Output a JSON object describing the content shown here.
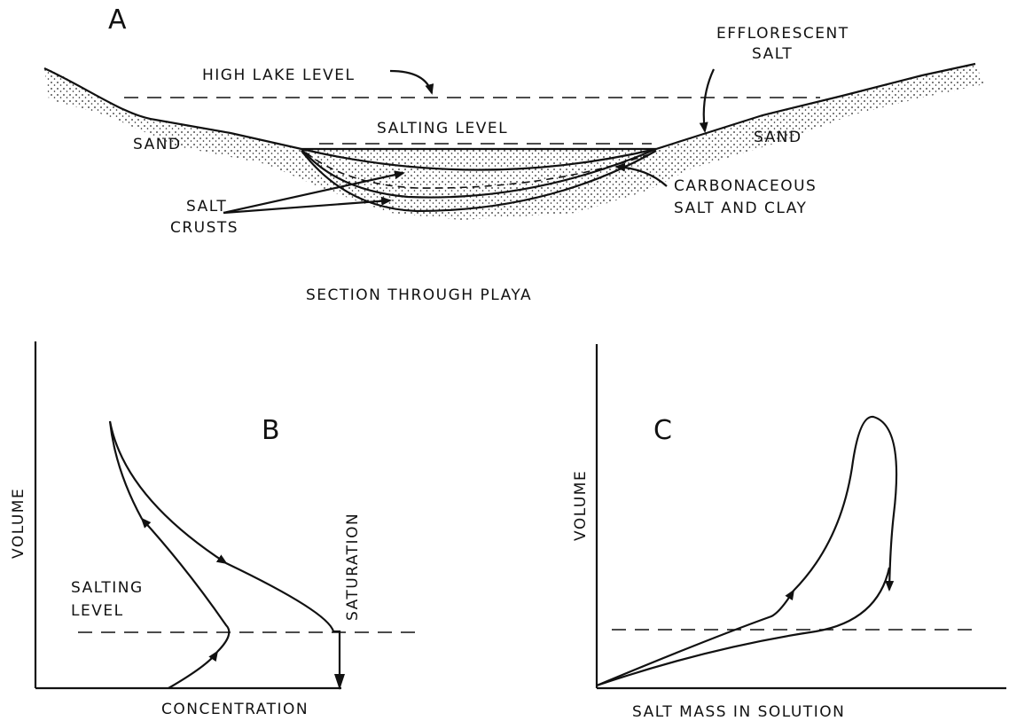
{
  "panel_a": {
    "label": "A",
    "high_lake_level": "HIGH LAKE LEVEL",
    "efflorescent_salt": [
      "EFFLORESCENT",
      "SALT"
    ],
    "salting_level": "SALTING LEVEL",
    "sand_left": "SAND",
    "sand_right": "SAND",
    "salt_crusts": [
      "SALT",
      "CRUSTS"
    ],
    "carbonaceous": [
      "CARBONACEOUS",
      "SALT AND CLAY"
    ],
    "caption": "SECTION THROUGH PLAYA"
  },
  "panel_b": {
    "label": "B",
    "y_axis": "VOLUME",
    "salting_level": [
      "SALTING",
      "LEVEL"
    ],
    "saturation": "SATURATION",
    "x_axis": "CONCENTRATION"
  },
  "panel_c": {
    "label": "C",
    "y_axis": "VOLUME",
    "x_axis": "SALT MASS IN SOLUTION"
  }
}
